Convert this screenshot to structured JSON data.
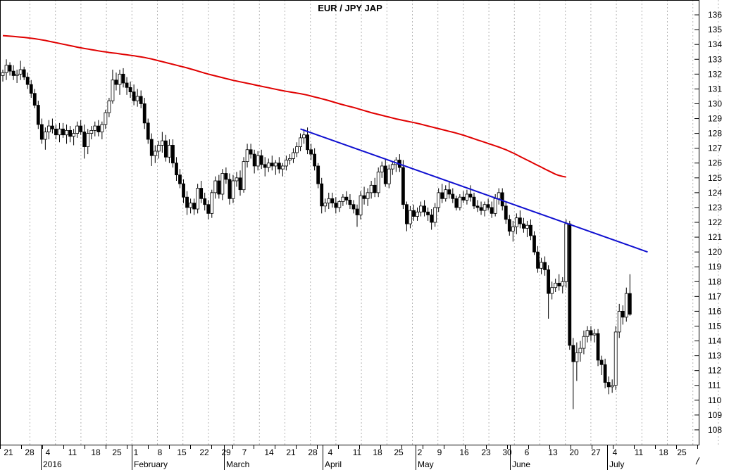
{
  "chart_data": {
    "type": "candlestick",
    "title": "EUR / JPY   JAP",
    "ylim": [
      107,
      137
    ],
    "y_ticks": [
      108,
      109,
      110,
      111,
      112,
      113,
      114,
      115,
      116,
      117,
      118,
      119,
      120,
      121,
      122,
      123,
      124,
      125,
      126,
      127,
      128,
      129,
      130,
      131,
      132,
      133,
      134,
      135,
      136
    ],
    "x_axis": {
      "day_labels": [
        "21",
        "28",
        "4",
        "11",
        "18",
        "25",
        "1",
        "8",
        "15",
        "22",
        "29",
        "7",
        "14",
        "21",
        "28",
        "4",
        "11",
        "18",
        "25",
        "2",
        "9",
        "16",
        "23",
        "30",
        "6",
        "13",
        "20",
        "27",
        "4",
        "11",
        "18",
        "25"
      ],
      "month_labels": [
        "2016",
        "February",
        "March",
        "April",
        "May",
        "June",
        "July"
      ],
      "grid": "vertical-dashed"
    },
    "candles": [
      [
        131.9,
        132.3,
        131.5,
        132.1
      ],
      [
        132.1,
        133.0,
        131.6,
        132.6
      ],
      [
        132.6,
        132.8,
        131.9,
        132.2
      ],
      [
        132.2,
        132.6,
        131.6,
        131.9
      ],
      [
        131.9,
        132.3,
        131.4,
        132.0
      ],
      [
        132.0,
        132.9,
        131.6,
        132.3
      ],
      [
        132.3,
        132.5,
        131.6,
        131.8
      ],
      [
        131.8,
        132.1,
        131.0,
        131.3
      ],
      [
        131.3,
        131.6,
        130.4,
        130.7
      ],
      [
        130.7,
        131.0,
        129.7,
        129.9
      ],
      [
        129.9,
        130.2,
        128.3,
        128.6
      ],
      [
        128.6,
        129.0,
        127.3,
        127.6
      ],
      [
        127.6,
        128.4,
        126.9,
        128.1
      ],
      [
        128.1,
        128.9,
        127.6,
        128.5
      ],
      [
        128.5,
        129.0,
        128.0,
        128.3
      ],
      [
        128.3,
        128.6,
        127.6,
        127.9
      ],
      [
        127.9,
        128.7,
        127.4,
        128.3
      ],
      [
        128.3,
        128.7,
        127.7,
        127.9
      ],
      [
        127.9,
        128.6,
        127.3,
        128.2
      ],
      [
        128.2,
        128.5,
        127.4,
        127.8
      ],
      [
        127.8,
        128.3,
        127.2,
        128.0
      ],
      [
        128.0,
        128.8,
        127.7,
        128.5
      ],
      [
        128.5,
        128.9,
        127.9,
        128.1
      ],
      [
        128.1,
        128.6,
        126.3,
        127.1
      ],
      [
        127.1,
        128.3,
        126.6,
        128.0
      ],
      [
        128.0,
        128.5,
        127.6,
        128.2
      ],
      [
        128.2,
        128.8,
        127.8,
        128.5
      ],
      [
        128.5,
        128.9,
        127.8,
        128.1
      ],
      [
        128.1,
        128.8,
        127.6,
        128.6
      ],
      [
        128.6,
        129.6,
        128.3,
        129.4
      ],
      [
        129.4,
        130.4,
        129.1,
        130.2
      ],
      [
        130.2,
        132.3,
        130.0,
        131.6
      ],
      [
        131.6,
        132.1,
        130.9,
        131.3
      ],
      [
        131.3,
        132.3,
        130.6,
        132.0
      ],
      [
        132.0,
        132.4,
        131.1,
        131.4
      ],
      [
        131.4,
        131.8,
        130.6,
        131.1
      ],
      [
        131.1,
        131.5,
        130.4,
        130.8
      ],
      [
        130.8,
        131.3,
        129.9,
        130.2
      ],
      [
        130.2,
        131.0,
        129.8,
        130.5
      ],
      [
        130.5,
        130.9,
        129.7,
        130.0
      ],
      [
        130.0,
        130.4,
        128.3,
        128.7
      ],
      [
        128.7,
        129.0,
        127.3,
        127.6
      ],
      [
        127.6,
        128.0,
        125.8,
        126.5
      ],
      [
        126.5,
        127.2,
        126.0,
        126.8
      ],
      [
        126.8,
        127.5,
        126.3,
        127.2
      ],
      [
        127.2,
        128.1,
        126.7,
        127.5
      ],
      [
        127.5,
        127.9,
        126.1,
        126.4
      ],
      [
        126.4,
        127.6,
        126.0,
        127.2
      ],
      [
        127.2,
        127.6,
        125.7,
        126.0
      ],
      [
        126.0,
        126.4,
        124.8,
        125.2
      ],
      [
        125.2,
        125.6,
        124.3,
        124.6
      ],
      [
        124.6,
        124.9,
        123.3,
        123.7
      ],
      [
        123.7,
        124.1,
        122.5,
        123.0
      ],
      [
        123.0,
        123.6,
        122.6,
        123.3
      ],
      [
        123.3,
        123.6,
        122.5,
        122.9
      ],
      [
        122.9,
        124.6,
        122.6,
        124.3
      ],
      [
        124.3,
        124.8,
        123.3,
        123.6
      ],
      [
        123.6,
        124.0,
        122.8,
        123.2
      ],
      [
        123.2,
        123.5,
        122.2,
        122.6
      ],
      [
        122.6,
        124.2,
        122.3,
        124.0
      ],
      [
        124.0,
        125.1,
        123.6,
        124.8
      ],
      [
        124.8,
        125.2,
        123.6,
        123.9
      ],
      [
        123.9,
        125.6,
        123.5,
        125.3
      ],
      [
        125.3,
        125.7,
        124.6,
        124.9
      ],
      [
        124.9,
        125.3,
        123.2,
        123.6
      ],
      [
        123.6,
        125.2,
        123.3,
        124.8
      ],
      [
        124.8,
        125.4,
        124.4,
        125.0
      ],
      [
        125.0,
        125.5,
        123.8,
        124.2
      ],
      [
        124.2,
        126.4,
        124.0,
        126.1
      ],
      [
        126.1,
        127.3,
        125.7,
        126.9
      ],
      [
        126.9,
        127.3,
        126.3,
        126.6
      ],
      [
        126.6,
        126.9,
        125.3,
        125.8
      ],
      [
        125.8,
        126.8,
        125.5,
        126.5
      ],
      [
        126.5,
        126.9,
        125.6,
        125.9
      ],
      [
        125.9,
        126.4,
        125.1,
        125.7
      ],
      [
        125.7,
        126.3,
        125.4,
        126.0
      ],
      [
        126.0,
        126.5,
        125.5,
        125.8
      ],
      [
        125.8,
        126.2,
        125.2,
        126.0
      ],
      [
        126.0,
        126.4,
        125.3,
        125.6
      ],
      [
        125.6,
        126.0,
        125.1,
        125.8
      ],
      [
        125.8,
        126.5,
        125.5,
        126.2
      ],
      [
        126.2,
        126.6,
        125.9,
        126.3
      ],
      [
        126.3,
        127.0,
        126.0,
        126.7
      ],
      [
        126.7,
        127.4,
        126.4,
        127.1
      ],
      [
        127.1,
        128.0,
        126.8,
        127.7
      ],
      [
        127.7,
        128.3,
        127.3,
        127.9
      ],
      [
        127.9,
        128.4,
        126.6,
        126.9
      ],
      [
        126.9,
        127.3,
        126.2,
        126.6
      ],
      [
        126.6,
        127.0,
        125.5,
        125.8
      ],
      [
        125.8,
        126.0,
        124.3,
        124.6
      ],
      [
        124.6,
        125.0,
        122.6,
        123.1
      ],
      [
        123.1,
        123.6,
        122.7,
        123.3
      ],
      [
        123.3,
        124.0,
        122.9,
        123.6
      ],
      [
        123.6,
        124.0,
        123.0,
        123.3
      ],
      [
        123.3,
        123.7,
        122.6,
        123.0
      ],
      [
        123.0,
        123.5,
        122.7,
        123.4
      ],
      [
        123.4,
        123.9,
        123.1,
        123.7
      ],
      [
        123.7,
        124.1,
        123.2,
        123.5
      ],
      [
        123.5,
        123.9,
        122.9,
        123.2
      ],
      [
        123.2,
        123.5,
        122.6,
        122.9
      ],
      [
        122.9,
        123.2,
        121.7,
        122.5
      ],
      [
        122.5,
        124.1,
        122.2,
        123.8
      ],
      [
        123.8,
        124.4,
        123.2,
        123.6
      ],
      [
        123.6,
        124.3,
        123.1,
        124.0
      ],
      [
        124.0,
        124.8,
        123.6,
        124.5
      ],
      [
        124.5,
        125.0,
        123.7,
        124.0
      ],
      [
        124.0,
        125.7,
        123.7,
        125.4
      ],
      [
        125.4,
        126.1,
        125.0,
        125.8
      ],
      [
        125.8,
        126.3,
        124.4,
        124.6
      ],
      [
        124.6,
        125.9,
        124.3,
        125.6
      ],
      [
        125.6,
        126.1,
        125.2,
        125.9
      ],
      [
        125.9,
        126.4,
        125.4,
        126.2
      ],
      [
        126.2,
        126.6,
        125.4,
        125.7
      ],
      [
        125.7,
        126.2,
        122.9,
        123.2
      ],
      [
        123.2,
        123.4,
        121.4,
        121.9
      ],
      [
        121.9,
        123.1,
        121.6,
        122.8
      ],
      [
        122.8,
        123.2,
        122.1,
        122.4
      ],
      [
        122.4,
        123.0,
        122.1,
        122.7
      ],
      [
        122.7,
        123.4,
        122.4,
        123.1
      ],
      [
        123.1,
        123.5,
        122.4,
        122.7
      ],
      [
        122.7,
        123.0,
        122.1,
        122.5
      ],
      [
        122.5,
        122.9,
        121.5,
        122.0
      ],
      [
        122.0,
        123.3,
        121.7,
        123.0
      ],
      [
        123.0,
        124.3,
        122.7,
        124.0
      ],
      [
        124.0,
        124.6,
        123.3,
        123.6
      ],
      [
        123.6,
        124.5,
        123.4,
        124.2
      ],
      [
        124.2,
        124.8,
        123.6,
        123.9
      ],
      [
        123.9,
        124.3,
        123.3,
        123.6
      ],
      [
        123.6,
        123.8,
        122.8,
        123.0
      ],
      [
        123.0,
        123.9,
        122.8,
        123.7
      ],
      [
        123.7,
        124.1,
        123.3,
        123.5
      ],
      [
        123.5,
        124.2,
        123.2,
        123.9
      ],
      [
        123.9,
        124.5,
        123.4,
        123.7
      ],
      [
        123.7,
        124.0,
        122.9,
        123.1
      ],
      [
        123.1,
        123.5,
        122.7,
        123.0
      ],
      [
        123.0,
        123.4,
        122.5,
        122.8
      ],
      [
        122.8,
        123.4,
        122.4,
        123.2
      ],
      [
        123.2,
        123.6,
        122.8,
        123.0
      ],
      [
        123.0,
        123.4,
        122.3,
        122.6
      ],
      [
        122.6,
        123.9,
        122.4,
        123.6
      ],
      [
        123.6,
        124.3,
        123.2,
        124.0
      ],
      [
        124.0,
        124.3,
        122.8,
        123.1
      ],
      [
        123.1,
        123.4,
        121.9,
        122.2
      ],
      [
        122.2,
        122.5,
        121.1,
        121.4
      ],
      [
        121.4,
        122.1,
        120.7,
        121.7
      ],
      [
        121.7,
        122.6,
        121.2,
        122.3
      ],
      [
        122.3,
        122.8,
        121.6,
        121.9
      ],
      [
        121.9,
        122.3,
        121.3,
        121.6
      ],
      [
        121.6,
        122.1,
        121.0,
        121.8
      ],
      [
        121.8,
        122.2,
        120.8,
        121.1
      ],
      [
        121.1,
        121.4,
        119.8,
        120.0
      ],
      [
        120.0,
        120.4,
        118.6,
        118.9
      ],
      [
        118.9,
        119.6,
        118.5,
        119.3
      ],
      [
        119.3,
        119.7,
        118.4,
        118.8
      ],
      [
        118.8,
        119.1,
        115.5,
        117.2
      ],
      [
        117.2,
        118.0,
        116.8,
        117.6
      ],
      [
        117.6,
        118.2,
        117.3,
        117.9
      ],
      [
        117.9,
        118.5,
        117.4,
        117.7
      ],
      [
        117.7,
        118.3,
        117.2,
        118.0
      ],
      [
        118.0,
        122.2,
        117.6,
        121.9
      ],
      [
        121.9,
        122.1,
        113.4,
        113.7
      ],
      [
        113.7,
        114.2,
        109.4,
        112.6
      ],
      [
        112.6,
        113.9,
        111.3,
        113.2
      ],
      [
        113.2,
        114.0,
        112.6,
        113.5
      ],
      [
        113.5,
        114.7,
        113.1,
        114.3
      ],
      [
        114.3,
        115.0,
        113.9,
        114.7
      ],
      [
        114.7,
        115.0,
        114.0,
        114.4
      ],
      [
        114.4,
        114.8,
        113.9,
        114.5
      ],
      [
        114.5,
        114.8,
        112.3,
        112.7
      ],
      [
        112.7,
        113.0,
        111.7,
        112.4
      ],
      [
        112.4,
        112.8,
        110.8,
        111.2
      ],
      [
        111.2,
        111.6,
        110.4,
        110.9
      ],
      [
        110.9,
        111.4,
        110.5,
        111.0
      ],
      [
        111.0,
        115.0,
        110.7,
        114.6
      ],
      [
        114.6,
        116.5,
        114.2,
        116.0
      ],
      [
        116.0,
        116.4,
        115.1,
        115.6
      ],
      [
        115.6,
        117.6,
        115.3,
        117.2
      ],
      [
        117.2,
        118.5,
        115.7,
        115.8
      ]
    ],
    "series": [
      {
        "color": "#e00000",
        "y": [
          134.6,
          134.58,
          134.56,
          134.54,
          134.52,
          134.5,
          134.48,
          134.45,
          134.42,
          134.39,
          134.35,
          134.31,
          134.27,
          134.22,
          134.17,
          134.12,
          134.07,
          134.02,
          133.97,
          133.92,
          133.87,
          133.82,
          133.77,
          133.73,
          133.69,
          133.65,
          133.61,
          133.57,
          133.53,
          133.5,
          133.46,
          133.43,
          133.4,
          133.37,
          133.33,
          133.3,
          133.27,
          133.24,
          133.2,
          133.16,
          133.12,
          133.07,
          133.02,
          132.96,
          132.9,
          132.84,
          132.78,
          132.72,
          132.66,
          132.6,
          132.54,
          132.48,
          132.42,
          132.35,
          132.28,
          132.21,
          132.14,
          132.07,
          132.0,
          131.94,
          131.88,
          131.82,
          131.76,
          131.7,
          131.64,
          131.58,
          131.53,
          131.48,
          131.43,
          131.38,
          131.33,
          131.28,
          131.23,
          131.18,
          131.13,
          131.08,
          131.03,
          130.98,
          130.93,
          130.88,
          130.84,
          130.8,
          130.76,
          130.72,
          130.68,
          130.63,
          130.58,
          130.52,
          130.46,
          130.4,
          130.34,
          130.28,
          130.21,
          130.14,
          130.07,
          130.0,
          129.93,
          129.87,
          129.81,
          129.75,
          129.68,
          129.61,
          129.54,
          129.47,
          129.4,
          129.34,
          129.28,
          129.22,
          129.16,
          129.1,
          129.04,
          128.98,
          128.93,
          128.88,
          128.83,
          128.78,
          128.73,
          128.68,
          128.62,
          128.56,
          128.5,
          128.44,
          128.38,
          128.32,
          128.26,
          128.2,
          128.14,
          128.08,
          128.02,
          127.95,
          127.88,
          127.8,
          127.72,
          127.64,
          127.56,
          127.48,
          127.4,
          127.32,
          127.24,
          127.16,
          127.08,
          126.99,
          126.9,
          126.79,
          126.68,
          126.56,
          126.44,
          126.32,
          126.2,
          126.08,
          125.96,
          125.84,
          125.72,
          125.6,
          125.48,
          125.36,
          125.24,
          125.16,
          125.1,
          125.05
        ]
      }
    ],
    "trendline": {
      "color": "#1010d0",
      "from": {
        "index": 84,
        "y": 128.3
      },
      "to": {
        "index": 182,
        "y": 120.0
      }
    },
    "colors": {
      "up": "#ffffff",
      "down": "#000000",
      "grid": "#b5b5b5"
    }
  }
}
